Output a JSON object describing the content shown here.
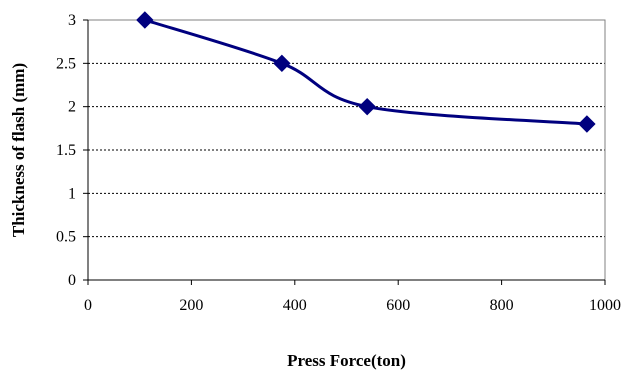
{
  "chart_data": {
    "type": "line",
    "xlabel": "Press Force(ton)",
    "ylabel": "Thickness of flash (mm)",
    "xlim": [
      0,
      1000
    ],
    "ylim": [
      0,
      3
    ],
    "xticks": [
      "0",
      "200",
      "400",
      "600",
      "800",
      "1000"
    ],
    "yticks": [
      "0",
      "0.5",
      "1",
      "1.5",
      "2",
      "2.5",
      "3"
    ],
    "grid": "horizontal-dashed",
    "legend": "none",
    "series": [
      {
        "x": [
          110,
          375,
          540,
          965
        ],
        "y": [
          3.0,
          2.5,
          2.0,
          1.8
        ],
        "marker": "diamond",
        "smooth": true
      }
    ],
    "colors": {
      "series": "#00007f",
      "grid": "#000000"
    }
  }
}
